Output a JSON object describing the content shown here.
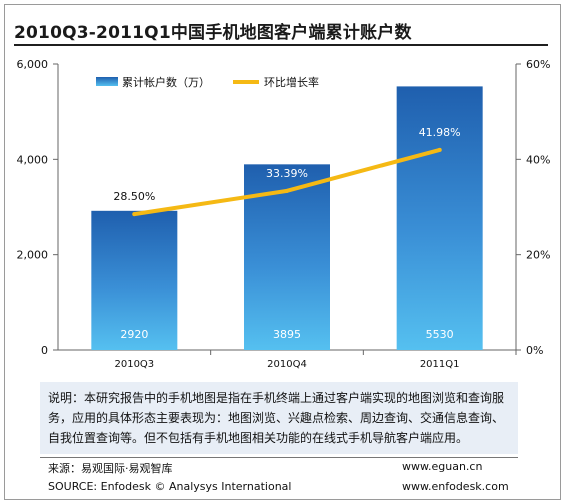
{
  "title": "2010Q3-2011Q1中国手机地图客户端累计账户数",
  "chart_data": {
    "type": "bar+line",
    "categories": [
      "2010Q3",
      "2010Q4",
      "2011Q1"
    ],
    "series": [
      {
        "name": "累计帐户数（万）",
        "type": "bar",
        "axis": "left",
        "values": [
          2920,
          3895,
          5530
        ],
        "labels": [
          "2920",
          "3895",
          "5530"
        ],
        "color": "#2b7bc9"
      },
      {
        "name": "环比增长率",
        "type": "line",
        "axis": "right",
        "values": [
          28.5,
          33.39,
          41.98
        ],
        "labels": [
          "28.50%",
          "33.39%",
          "41.98%"
        ],
        "color": "#f5b914"
      }
    ],
    "y_left": {
      "min": 0,
      "max": 6000,
      "ticks": [
        "0",
        "2,000",
        "4,000",
        "6,000"
      ]
    },
    "y_right": {
      "min": 0,
      "max": 60,
      "ticks": [
        "0%",
        "20%",
        "40%",
        "60%"
      ]
    },
    "legend_position": "top-left"
  },
  "note": "说明：本研究报告中的手机地图是指在手机终端上通过客户端实现的地图浏览和查询服务，应用的具体形态主要表现为：地图浏览、兴趣点检索、周边查询、交通信息查询、自我位置查询等。但不包括有手机地图相关功能的在线式手机导航客户端应用。",
  "source_cn": "来源：易观国际·易观智库",
  "source_en": "SOURCE: Enfodesk © Analysys International",
  "url1": "www.eguan.cn",
  "url2": "www.enfodesk.com"
}
